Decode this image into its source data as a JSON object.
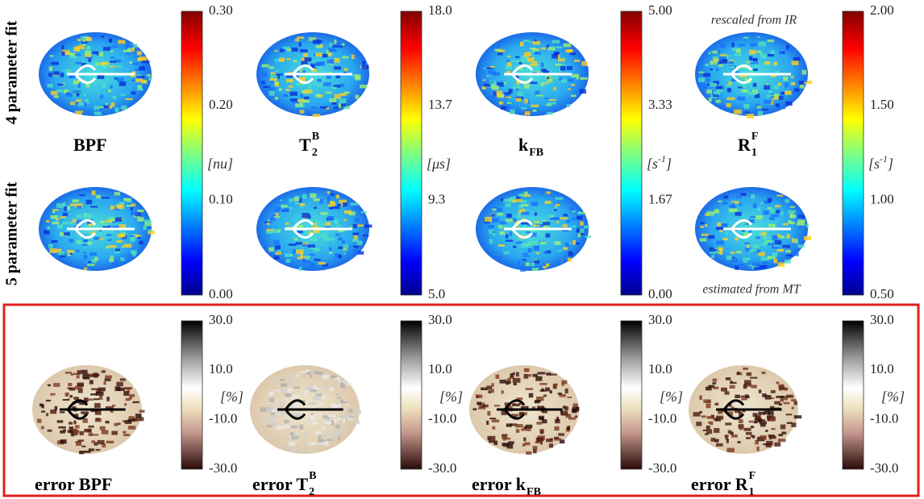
{
  "row_labels": [
    "4 parameter fit",
    "5 parameter fit"
  ],
  "panels": [
    {
      "label": {
        "base": "BPF"
      },
      "unit": {
        "base": "[nu]"
      },
      "ticks": [
        "0.30",
        "0.20",
        "0.10",
        "0.00"
      ]
    },
    {
      "label": {
        "base": "T",
        "sub": "2",
        "sup": "B"
      },
      "unit": {
        "base": "[μs]"
      },
      "ticks": [
        "18.0",
        "13.7",
        "9.3",
        "5.0"
      ]
    },
    {
      "label": {
        "base": "k",
        "sub": "FB"
      },
      "unit": {
        "base": "[s",
        "sup": "-1",
        "tail": "]"
      },
      "ticks": [
        "5.00",
        "3.33",
        "1.67",
        "0.00"
      ]
    },
    {
      "label": {
        "base": "R",
        "sub": "1",
        "sup": "F"
      },
      "unit": {
        "base": "[s",
        "sup": "-1",
        "tail": "]"
      },
      "ticks": [
        "2.00",
        "1.50",
        "1.00",
        "0.50"
      ]
    }
  ],
  "notes": {
    "top": "rescaled from IR",
    "bottom": "estimated from MT"
  },
  "error_panels": [
    {
      "label": {
        "prefix": "error ",
        "base": "BPF"
      },
      "unit": {
        "base": "[%]"
      },
      "ticks": [
        "30.0",
        "10.0",
        "-10.0",
        "-30.0"
      ]
    },
    {
      "label": {
        "prefix": "error ",
        "base": "T",
        "sub": "2",
        "sup": "B"
      },
      "unit": {
        "base": "[%]"
      },
      "ticks": [
        "30.0",
        "10.0",
        "-10.0",
        "-30.0"
      ]
    },
    {
      "label": {
        "prefix": "error ",
        "base": "k",
        "sub": "FB"
      },
      "unit": {
        "base": "[%]"
      },
      "ticks": [
        "30.0",
        "10.0",
        "-10.0",
        "-30.0"
      ]
    },
    {
      "label": {
        "prefix": "error ",
        "base": "R",
        "sub": "1",
        "sup": "F"
      },
      "unit": {
        "base": "[%]"
      },
      "ticks": [
        "30.0",
        "10.0",
        "-10.0",
        "-30.0"
      ]
    }
  ]
}
